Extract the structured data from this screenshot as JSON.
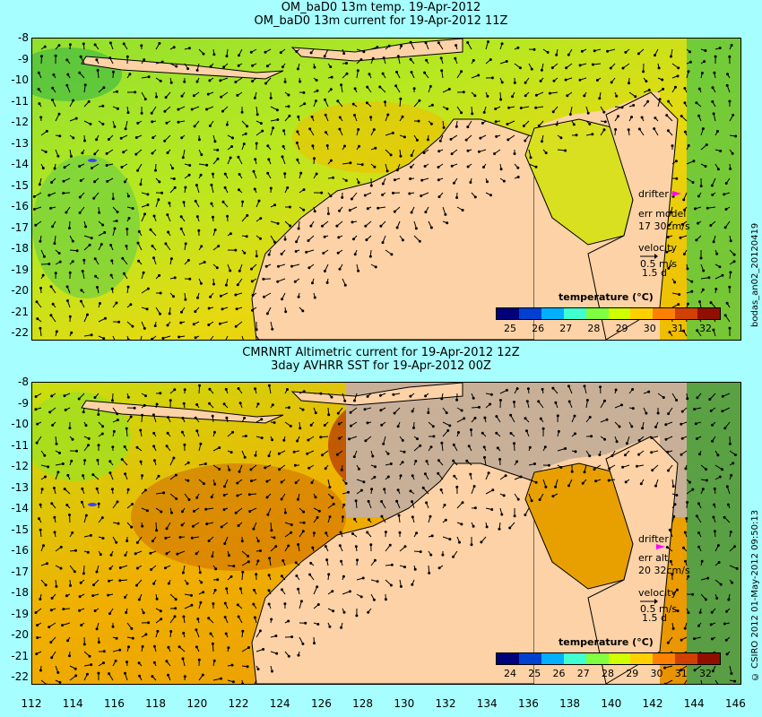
{
  "top": {
    "title1": "OM_baD0 13m temp. 19-Apr-2012",
    "title2": "OM_baD0 13m current for 19-Apr-2012 11Z",
    "drifter_label": "drifter",
    "err_label": "err model",
    "err_value": "17 30cm/s",
    "velocity_label": "velocity",
    "velocity_value": "0.5 m/s",
    "velocity_time": "1.5 d",
    "colorbar_title": "temperature (°C)",
    "colorbar_ticks": [
      "25",
      "26",
      "27",
      "28",
      "29",
      "30",
      "31",
      "32"
    ],
    "side_label": "bodas_an02_20120419"
  },
  "bottom": {
    "title1": "CMRNRT Altimetric current for 19-Apr-2012 12Z",
    "title2": "3day AVHRR SST for 19-Apr-2012 00Z",
    "drifter_label": "drifter",
    "err_label": "err alt",
    "err_value": "20 32cm/s",
    "velocity_label": "velocity",
    "velocity_value": "0.5 m/s",
    "velocity_time": "1.5 d",
    "colorbar_title": "temperature (°C)",
    "colorbar_ticks": [
      "24",
      "25",
      "26",
      "27",
      "28",
      "29",
      "30",
      "31",
      "32"
    ],
    "side_label": "© CSIRO 2012   01-May-2012 09:50:13"
  },
  "y_ticks": [
    "-8",
    "-9",
    "-10",
    "-11",
    "-12",
    "-13",
    "-14",
    "-15",
    "-16",
    "-17",
    "-18",
    "-19",
    "-20",
    "-21",
    "-22"
  ],
  "x_ticks": [
    "112",
    "114",
    "116",
    "118",
    "120",
    "122",
    "124",
    "126",
    "128",
    "130",
    "132",
    "134",
    "136",
    "138",
    "140",
    "142",
    "144",
    "146"
  ],
  "colors": {
    "background": "#a6fefe",
    "land": "#fcd2a6",
    "no_data": "#c8b098",
    "colorbar": [
      "#00007a",
      "#0040d0",
      "#00b0ff",
      "#40ffd0",
      "#80ff40",
      "#d0ff00",
      "#ffd000",
      "#ff8000",
      "#d04000",
      "#901000"
    ]
  }
}
